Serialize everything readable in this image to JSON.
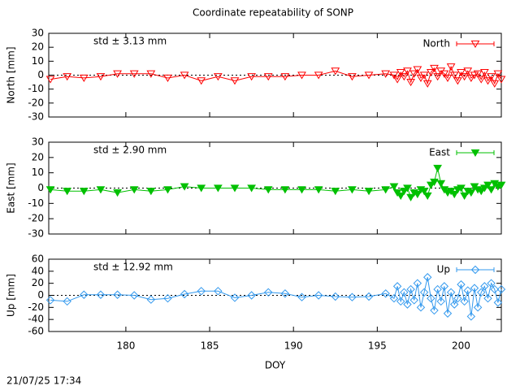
{
  "timestamp": "21/07/25 17:34",
  "chart_data": [
    {
      "type": "line",
      "title": "Coordinate repeatability of SONP",
      "ylabel": "North [mm]",
      "annotation": "std ± 3.13 mm",
      "x": [
        175.5,
        176.5,
        177.5,
        178.5,
        179.5,
        180.5,
        181.5,
        182.5,
        183.5,
        184.5,
        185.5,
        186.5,
        187.5,
        188.5,
        189.5,
        190.5,
        191.5,
        192.5,
        193.5,
        194.5,
        195.5,
        196.0,
        196.2,
        196.4,
        196.6,
        196.8,
        197.0,
        197.2,
        197.4,
        197.6,
        197.8,
        198.0,
        198.2,
        198.4,
        198.6,
        198.8,
        199.0,
        199.2,
        199.4,
        199.6,
        199.8,
        200.0,
        200.2,
        200.4,
        200.6,
        200.8,
        201.0,
        201.2,
        201.4,
        201.6,
        201.8,
        202.0,
        202.2,
        202.4
      ],
      "series": [
        {
          "name": "North",
          "color": "#ff0000",
          "marker": "open-triangle-down",
          "values": [
            -3,
            -1,
            -2,
            -1,
            1,
            1,
            1,
            -2,
            0,
            -4,
            -1,
            -4,
            -1,
            -1,
            -1,
            0,
            0,
            3,
            -1,
            0,
            1,
            0,
            -3,
            2,
            -1,
            3,
            -5,
            1,
            4,
            -2,
            0,
            -6,
            2,
            5,
            -1,
            3,
            1,
            -2,
            6,
            0,
            -4,
            2,
            -1,
            3,
            -2,
            0,
            1,
            -3,
            2,
            -4,
            -1,
            -6,
            1,
            -3
          ]
        }
      ],
      "xlim": [
        175.4,
        202.4
      ],
      "xticks": [
        180,
        185,
        190,
        195,
        200
      ],
      "ylim": [
        -30,
        30
      ],
      "yticks": [
        30,
        20,
        10,
        0,
        -10,
        -20,
        -30
      ]
    },
    {
      "type": "line",
      "ylabel": "East [mm]",
      "annotation": "std ± 2.90 mm",
      "x": [
        175.5,
        176.5,
        177.5,
        178.5,
        179.5,
        180.5,
        181.5,
        182.5,
        183.5,
        184.5,
        185.5,
        186.5,
        187.5,
        188.5,
        189.5,
        190.5,
        191.5,
        192.5,
        193.5,
        194.5,
        195.5,
        196.0,
        196.2,
        196.4,
        196.6,
        196.8,
        197.0,
        197.2,
        197.4,
        197.6,
        197.8,
        198.0,
        198.2,
        198.4,
        198.6,
        198.8,
        199.0,
        199.2,
        199.4,
        199.6,
        199.8,
        200.0,
        200.2,
        200.4,
        200.6,
        200.8,
        201.0,
        201.2,
        201.4,
        201.6,
        201.8,
        202.0,
        202.2,
        202.4
      ],
      "series": [
        {
          "name": "East",
          "color": "#00c000",
          "marker": "filled-triangle-down",
          "values": [
            -1,
            -2,
            -2,
            -1,
            -3,
            -1,
            -2,
            -1,
            1,
            0,
            0,
            0,
            0,
            -1,
            -1,
            -1,
            -1,
            -2,
            -1,
            -2,
            -1,
            1,
            -3,
            -5,
            -2,
            0,
            -6,
            -3,
            -4,
            -1,
            -2,
            -5,
            2,
            4,
            13,
            3,
            -1,
            -3,
            -2,
            -4,
            -1,
            0,
            -5,
            -2,
            -3,
            1,
            -1,
            -2,
            0,
            2,
            -1,
            3,
            1,
            2
          ]
        }
      ],
      "xlim": [
        175.4,
        202.4
      ],
      "xticks": [
        180,
        185,
        190,
        195,
        200
      ],
      "ylim": [
        -30,
        30
      ],
      "yticks": [
        30,
        20,
        10,
        0,
        -10,
        -20,
        -30
      ]
    },
    {
      "type": "line",
      "ylabel": "Up [mm]",
      "xlabel": "DOY",
      "annotation": "std ± 12.92 mm",
      "x": [
        175.5,
        176.5,
        177.5,
        178.5,
        179.5,
        180.5,
        181.5,
        182.5,
        183.5,
        184.5,
        185.5,
        186.5,
        187.5,
        188.5,
        189.5,
        190.5,
        191.5,
        192.5,
        193.5,
        194.5,
        195.5,
        196.0,
        196.2,
        196.4,
        196.6,
        196.8,
        197.0,
        197.2,
        197.4,
        197.6,
        197.8,
        198.0,
        198.2,
        198.4,
        198.6,
        198.8,
        199.0,
        199.2,
        199.4,
        199.6,
        199.8,
        200.0,
        200.2,
        200.4,
        200.6,
        200.8,
        201.0,
        201.2,
        201.4,
        201.6,
        201.8,
        202.0,
        202.2,
        202.4
      ],
      "series": [
        {
          "name": "Up",
          "color": "#3399ee",
          "marker": "open-diamond",
          "values": [
            -8,
            -10,
            1,
            1,
            1,
            0,
            -7,
            -5,
            2,
            7,
            7,
            -4,
            0,
            5,
            3,
            -3,
            0,
            -2,
            -3,
            -2,
            3,
            -5,
            15,
            -10,
            5,
            -15,
            10,
            -8,
            20,
            -20,
            5,
            30,
            -5,
            -25,
            10,
            -10,
            15,
            -30,
            5,
            -15,
            -5,
            18,
            -10,
            8,
            -35,
            12,
            -20,
            5,
            15,
            -5,
            20,
            10,
            -12,
            10
          ]
        }
      ],
      "xlim": [
        175.4,
        202.4
      ],
      "xticks": [
        180,
        185,
        190,
        195,
        200
      ],
      "ylim": [
        -60,
        60
      ],
      "yticks": [
        60,
        40,
        20,
        0,
        -20,
        -40,
        -60
      ]
    }
  ]
}
